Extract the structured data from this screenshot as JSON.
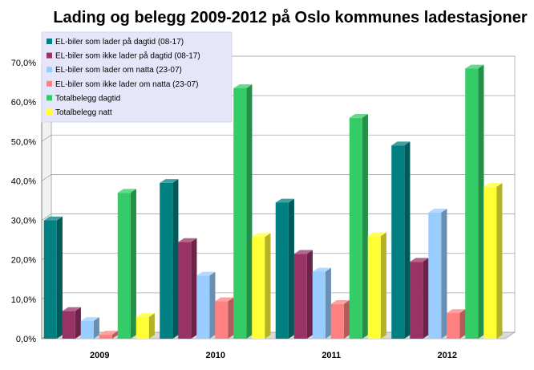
{
  "chart_data": {
    "type": "bar",
    "title": "Lading og belegg 2009-2012 på Oslo kommunes ladestasjoner",
    "xlabel": "",
    "ylabel": "",
    "categories": [
      "2009",
      "2010",
      "2011",
      "2012"
    ],
    "ylim": [
      0,
      0.7
    ],
    "yticks": [
      "0,0%",
      "10,0%",
      "20,0%",
      "30,0%",
      "40,0%",
      "50,0%",
      "60,0%",
      "70,0%"
    ],
    "grid": true,
    "legend_position": "top-left",
    "series": [
      {
        "name": "EL-biler som lader på dagtid (08-17)",
        "color": "#008080",
        "values": [
          0.3,
          0.395,
          0.345,
          0.49
        ]
      },
      {
        "name": "EL-biler som ikke lader på dagtid (08-17)",
        "color": "#993366",
        "values": [
          0.07,
          0.245,
          0.215,
          0.195
        ]
      },
      {
        "name": "EL-biler som lader om natta (23-07)",
        "color": "#99ccff",
        "values": [
          0.045,
          0.16,
          0.17,
          0.32
        ]
      },
      {
        "name": "EL-biler som ikke lader om natta (23-07)",
        "color": "#ff8080",
        "values": [
          0.01,
          0.095,
          0.088,
          0.065
        ]
      },
      {
        "name": "Totalbelegg dagtid",
        "color": "#33cc66",
        "values": [
          0.37,
          0.635,
          0.56,
          0.685
        ]
      },
      {
        "name": "Totalbelegg natt",
        "color": "#ffff33",
        "values": [
          0.055,
          0.258,
          0.26,
          0.385
        ]
      }
    ]
  }
}
